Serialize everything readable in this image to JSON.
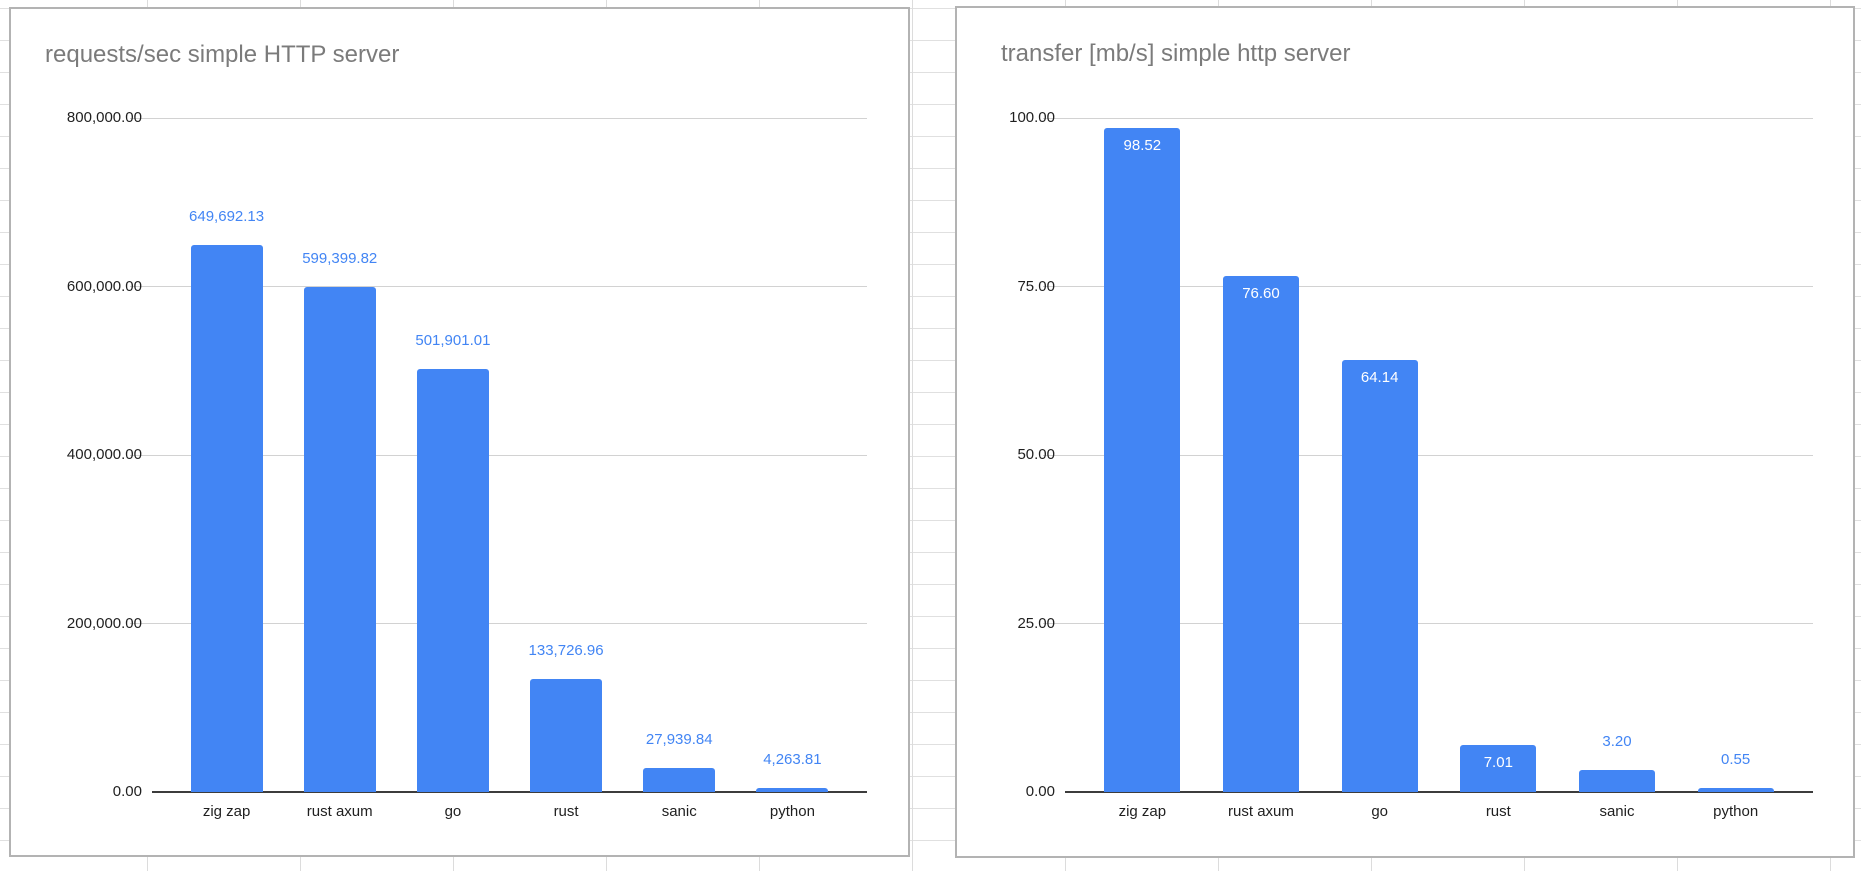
{
  "style": {
    "bar_color": "#4285f4",
    "value_label_above_color": "#4285f4",
    "value_label_inside_color": "#ffffff",
    "title_color": "#7b7b7b",
    "axis_text_color": "#1f1f1f",
    "gridline_color": "#d2d2d2",
    "baseline_color": "#3c3c3c",
    "card_border_color": "#b3b3b3",
    "sheet_line_color": "#dcdcdc"
  },
  "chart_data": [
    {
      "type": "bar",
      "title": "requests/sec simple HTTP server",
      "xlabel": "",
      "ylabel": "",
      "categories": [
        "zig zap",
        "rust axum",
        "go",
        "rust",
        "sanic",
        "python"
      ],
      "values": [
        649692.13,
        599399.82,
        501901.01,
        133726.96,
        27939.84,
        4263.81
      ],
      "value_labels": [
        "649,692.13",
        "599,399.82",
        "501,901.01",
        "133,726.96",
        "27,939.84",
        "4,263.81"
      ],
      "value_label_placement": [
        "above",
        "above",
        "above",
        "above",
        "above",
        "above"
      ],
      "ylim": [
        0,
        800000
      ],
      "y_tick_labels": [
        "0.00",
        "200,000.00",
        "400,000.00",
        "600,000.00",
        "800,000.00"
      ],
      "grid": true,
      "legend": "none"
    },
    {
      "type": "bar",
      "title": "transfer [mb/s] simple http server",
      "xlabel": "",
      "ylabel": "",
      "categories": [
        "zig zap",
        "rust axum",
        "go",
        "rust",
        "sanic",
        "python"
      ],
      "values": [
        98.52,
        76.6,
        64.14,
        7.01,
        3.2,
        0.55
      ],
      "value_labels": [
        "98.52",
        "76.60",
        "64.14",
        "7.01",
        "3.20",
        "0.55"
      ],
      "value_label_placement": [
        "inside",
        "inside",
        "inside",
        "inside",
        "above",
        "above"
      ],
      "ylim": [
        0,
        100
      ],
      "y_tick_labels": [
        "0.00",
        "25.00",
        "50.00",
        "75.00",
        "100.00"
      ],
      "grid": true,
      "legend": "none"
    }
  ]
}
